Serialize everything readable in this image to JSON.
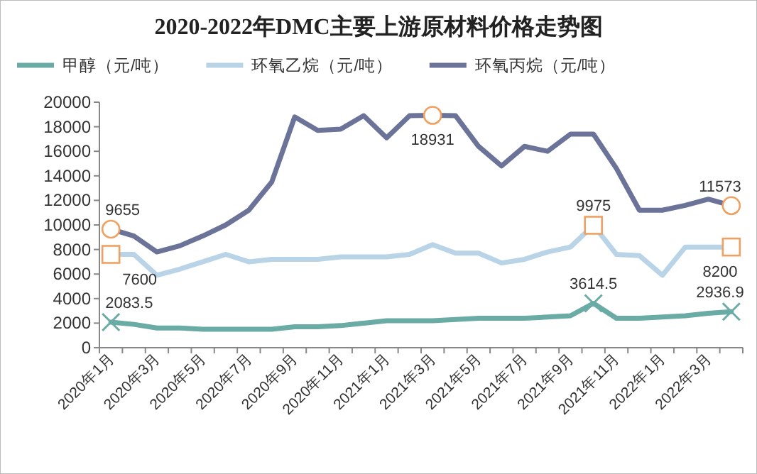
{
  "chart_data": {
    "type": "line",
    "title": "2020-2022年DMC主要上游原材料价格走势图",
    "categories": [
      "2020年1月",
      null,
      "2020年3月",
      null,
      "2020年5月",
      null,
      "2020年7月",
      null,
      "2020年9月",
      null,
      "2020年11月",
      null,
      "2021年1月",
      null,
      "2021年3月",
      null,
      "2021年5月",
      null,
      "2021年7月",
      null,
      "2021年9月",
      null,
      "2021年11月",
      null,
      "2022年1月",
      null,
      "2022年3月",
      null
    ],
    "series": [
      {
        "name": "甲醇（元/吨）",
        "color": "#6aaba6",
        "values": [
          2083.5,
          1900,
          1600,
          1600,
          1500,
          1500,
          1500,
          1500,
          1700,
          1700,
          1800,
          2000,
          2200,
          2200,
          2200,
          2300,
          2400,
          2400,
          2400,
          2500,
          2600,
          3614.5,
          2400,
          2400,
          2500,
          2600,
          2800,
          2936.9
        ],
        "value_labels": [
          "2083.5",
          null,
          null,
          null,
          null,
          null,
          null,
          null,
          null,
          null,
          null,
          null,
          null,
          null,
          null,
          null,
          null,
          null,
          null,
          null,
          null,
          "3614.5",
          null,
          null,
          null,
          null,
          null,
          "2936.9"
        ]
      },
      {
        "name": "环氧乙烷（元/吨）",
        "color": "#b8d4e6",
        "values": [
          7600,
          7600,
          5900,
          6400,
          7000,
          7600,
          7000,
          7200,
          7200,
          7200,
          7400,
          7400,
          7400,
          7600,
          8400,
          7700,
          7700,
          6900,
          7200,
          7800,
          8200,
          9975,
          7600,
          7500,
          5900,
          8200,
          8200,
          8200
        ],
        "value_labels": [
          "7600",
          null,
          null,
          null,
          null,
          null,
          null,
          null,
          null,
          null,
          null,
          null,
          null,
          null,
          null,
          null,
          null,
          null,
          null,
          null,
          null,
          "9975",
          null,
          null,
          null,
          null,
          null,
          "8200"
        ]
      },
      {
        "name": "环氧丙烷（元/吨）",
        "color": "#6b7399",
        "values": [
          9655,
          9100,
          7800,
          8300,
          9100,
          10000,
          11200,
          13500,
          18800,
          17700,
          17800,
          18900,
          17100,
          18900,
          18931,
          18900,
          16400,
          14800,
          16400,
          16000,
          17400,
          17400,
          14600,
          11200,
          11200,
          11600,
          12100,
          11573
        ],
        "value_labels": [
          "9655",
          null,
          null,
          null,
          null,
          null,
          null,
          null,
          null,
          null,
          null,
          null,
          null,
          null,
          "18931",
          null,
          null,
          null,
          null,
          null,
          null,
          null,
          null,
          null,
          null,
          null,
          null,
          "11573"
        ]
      }
    ],
    "ylim": [
      0,
      20000
    ],
    "yticks": [
      0,
      2000,
      4000,
      6000,
      8000,
      10000,
      12000,
      14000,
      16000,
      18000,
      20000
    ],
    "legend": "top",
    "line_style": "solid"
  }
}
